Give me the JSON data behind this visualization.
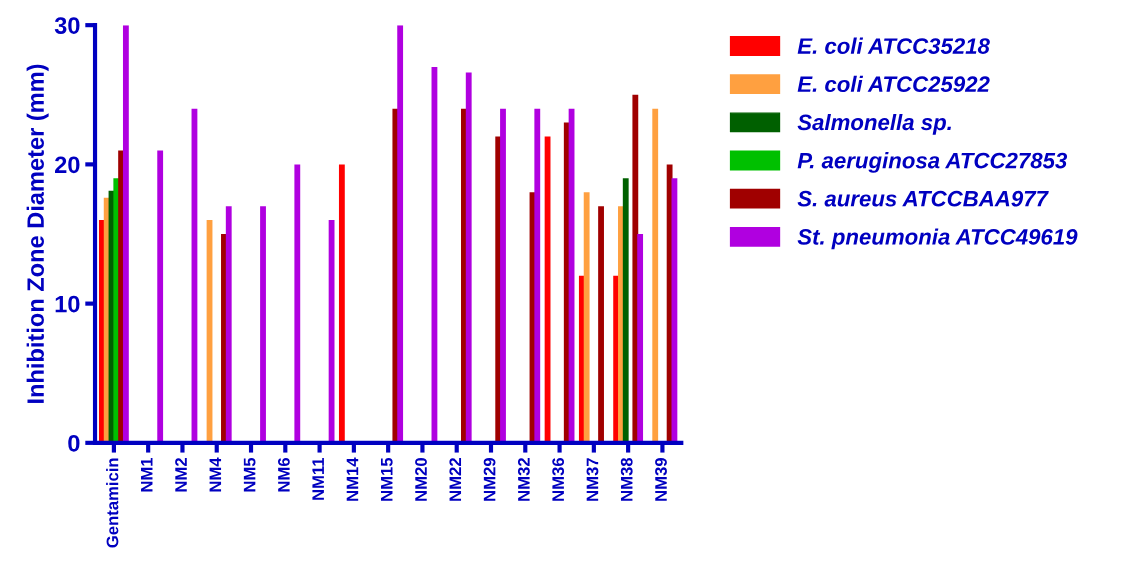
{
  "chart_data": {
    "type": "bar",
    "ylabel": "Inhibition Zone Diameter (mm)",
    "categories": [
      "Gentamicin",
      "NM1",
      "NM2",
      "NM4",
      "NM5",
      "NM6",
      "NM11",
      "NM14",
      "NM15",
      "NM20",
      "NM22",
      "NM29",
      "NM32",
      "NM36",
      "NM37",
      "NM38",
      "NM39"
    ],
    "series": [
      {
        "name": "E. coli ATCC35218",
        "color": "#ff0000",
        "values": [
          16,
          null,
          null,
          null,
          null,
          null,
          null,
          20,
          null,
          null,
          null,
          null,
          null,
          22,
          12,
          12,
          null
        ]
      },
      {
        "name": "E. coli ATCC25922",
        "color": "#ffa040",
        "values": [
          17.6,
          null,
          null,
          16,
          null,
          null,
          null,
          null,
          null,
          null,
          null,
          null,
          null,
          null,
          18,
          17,
          24
        ]
      },
      {
        "name": "Salmonella sp.",
        "color": "#006000",
        "values": [
          18.1,
          null,
          null,
          null,
          null,
          null,
          null,
          null,
          null,
          null,
          null,
          null,
          null,
          null,
          null,
          19,
          null
        ]
      },
      {
        "name": "P. aeruginosa ATCC27853",
        "color": "#00c000",
        "values": [
          19,
          null,
          null,
          null,
          null,
          null,
          null,
          null,
          null,
          null,
          null,
          null,
          null,
          null,
          null,
          null,
          null
        ]
      },
      {
        "name": "S. aureus ATCCBAA977",
        "color": "#a00000",
        "values": [
          21,
          null,
          null,
          15,
          null,
          null,
          null,
          null,
          24,
          null,
          24,
          22,
          18,
          23,
          17,
          25,
          20
        ]
      },
      {
        "name": "St. pneumonia ATCC49619",
        "color": "#b000e0",
        "values": [
          30,
          21,
          24,
          17,
          17,
          20,
          16,
          null,
          30,
          27,
          26.6,
          24,
          24,
          24,
          null,
          15,
          19
        ]
      }
    ],
    "ylim": [
      0,
      30
    ],
    "yticks": [
      0,
      10,
      20,
      30
    ],
    "legend": "right",
    "grid": false
  }
}
